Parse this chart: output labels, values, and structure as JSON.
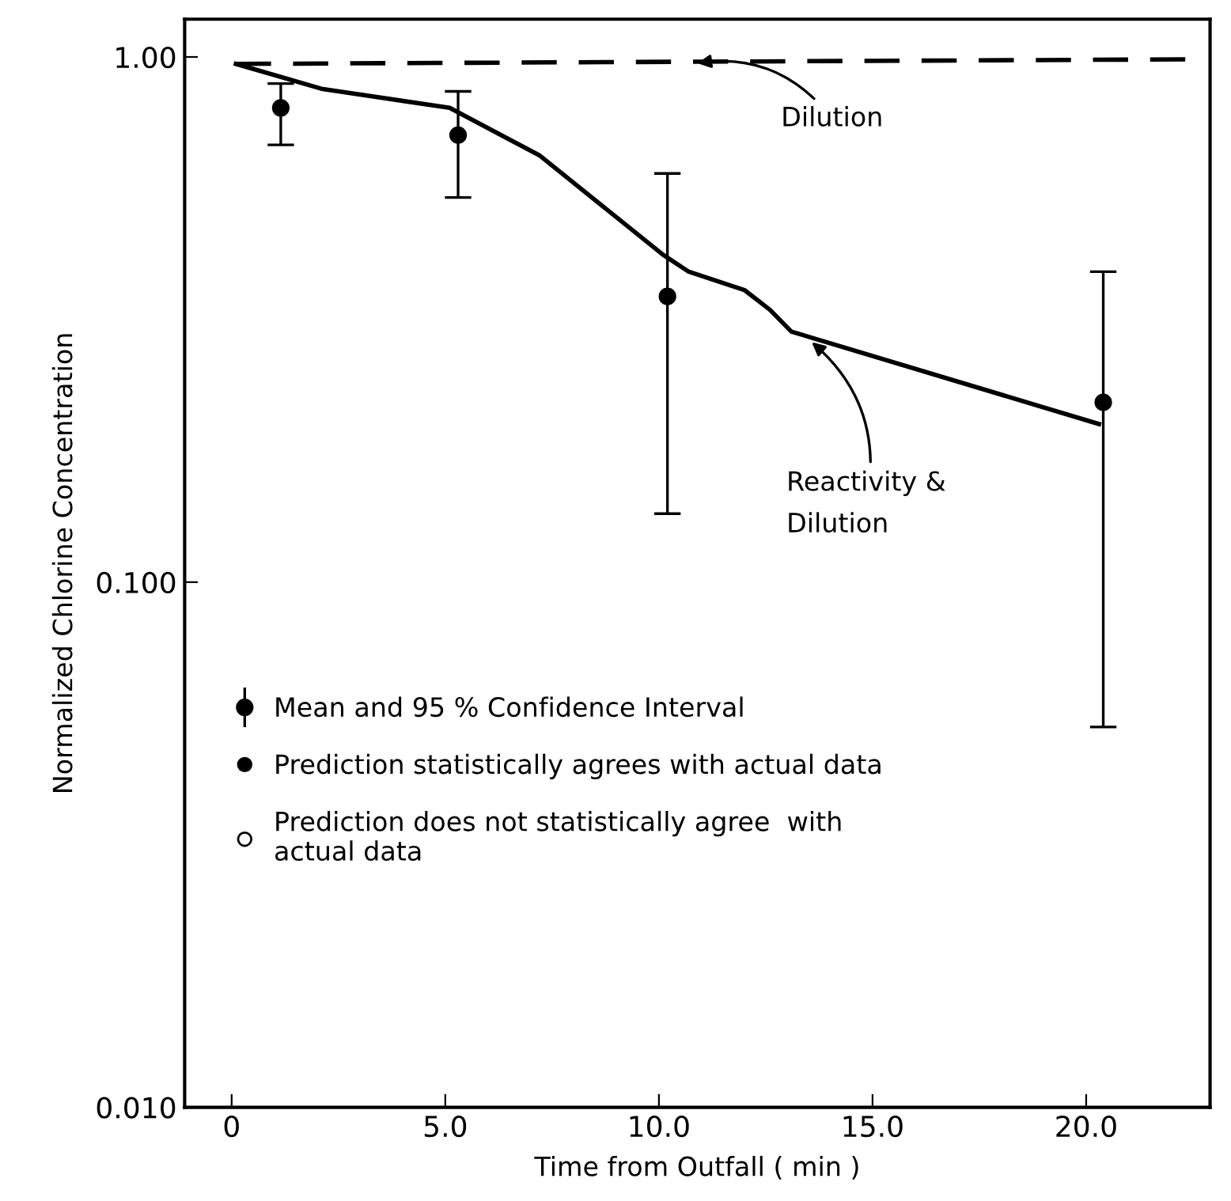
{
  "chart_data": {
    "type": "line",
    "xlabel": "Time from Outfall ( min )",
    "ylabel": "Normalized Chlorine Concentration",
    "xlim": [
      -1.1,
      22.9
    ],
    "xticks": [
      0,
      {
        "value": 5,
        "label": "5.0"
      },
      {
        "value": 10,
        "label": "10.0"
      },
      {
        "value": 15,
        "label": "15.0"
      },
      {
        "value": 20,
        "label": "20.0"
      }
    ],
    "ylim": [
      0.01,
      1.18
    ],
    "yticks": [
      {
        "value": 0.01,
        "label": "0.010"
      },
      {
        "value": 0.1,
        "label": "0.100"
      },
      {
        "value": 1,
        "label": "1.00"
      }
    ],
    "log": "y",
    "grid": false,
    "legend": "bottom left",
    "series": [
      {
        "type": "line",
        "line_style": "dashed",
        "marker": "none",
        "color": "#000000",
        "x": [
          0.1,
          22.8
        ],
        "values": [
          0.97,
          0.99
        ]
      },
      {
        "type": "line",
        "line_style": "solid",
        "marker": "none",
        "color": "#000000",
        "x": [
          0.1,
          2.1,
          5.1,
          7.2,
          10.1,
          10.7,
          12.0,
          12.6,
          13.1,
          20.3
        ],
        "values": [
          0.97,
          0.87,
          0.8,
          0.65,
          0.42,
          0.39,
          0.36,
          0.33,
          0.3,
          0.2
        ]
      },
      {
        "type": "scatter",
        "name": "Mean and 95 % Confidence Interval",
        "marker": "circle",
        "color": "#000000",
        "x": [
          1.15,
          5.3,
          10.2,
          20.4
        ],
        "values": [
          0.8,
          0.71,
          0.35,
          0.22
        ],
        "errors": [
          [
            0.68,
            0.89
          ],
          [
            0.54,
            0.86
          ],
          [
            0.135,
            0.6
          ],
          [
            0.053,
            0.39
          ]
        ]
      },
      {
        "type": "scatter",
        "name": "Prediction statistically agrees with actual data",
        "marker": "circle",
        "color": "#000000"
      },
      {
        "type": "scatter",
        "name": "Prediction does not statistically agree  with\nactual data",
        "marker": "circle",
        "color": "#ffffff"
      }
    ],
    "annotations": [
      {
        "text": "Dilution",
        "x": 10.8,
        "y": 0.97
      },
      {
        "text": "Reactivity &\nDilution",
        "x": 13.5,
        "y": 0.29
      }
    ]
  }
}
